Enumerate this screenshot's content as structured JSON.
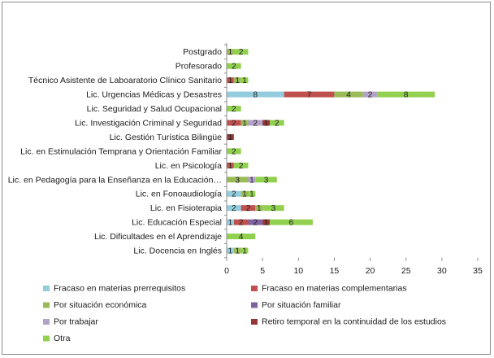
{
  "chart_data": {
    "type": "bar",
    "orientation": "horizontal",
    "stacked": true,
    "categories": [
      "Postgrado",
      "Profesorado",
      "Técnico Asistente de Laboaratorio Clínico Sanitario",
      "Lic. Urgencias Médicas y Desastres",
      "Lic. Seguridad y Salud Ocupacional",
      "Lic. Investigación Criminal y Seguridad",
      "Lic. Gestión Turística Bilingüe",
      "Lic. en Estimulación Temprana y Orientación Familiar",
      "Lic. en Psicología",
      "Lic.  en Pedagogía para la Enseñanza en la Educación…",
      "Lic. en Fonoaudiología",
      "Lic.  en Fisioterapia",
      "Lic. Educación Especial",
      "Lic.  Dificultades en el Aprendizaje",
      "Lic. Docencia en Inglés"
    ],
    "series": [
      {
        "name": "Fracaso en materias prerrequisitos",
        "color": "#93cddd",
        "values": [
          0,
          0,
          0,
          8,
          0,
          0,
          0,
          0,
          0,
          0,
          2,
          2,
          1,
          0,
          1
        ]
      },
      {
        "name": "Fracaso en materias complementarias",
        "color": "#c0504d",
        "values": [
          0,
          0,
          1,
          7,
          0,
          2,
          0,
          0,
          1,
          0,
          0,
          2,
          2,
          0,
          0
        ]
      },
      {
        "name": "Por situación económica",
        "color": "#9bbb59",
        "values": [
          1,
          0,
          1,
          4,
          0,
          1,
          0,
          0,
          0,
          3,
          1,
          1,
          0,
          0,
          1
        ]
      },
      {
        "name": "Por situación familiar",
        "color": "#8064a2",
        "values": [
          0,
          0,
          0,
          0,
          0,
          0,
          0,
          0,
          0,
          0,
          0,
          0,
          2,
          0,
          0
        ]
      },
      {
        "name": "Por trabajar",
        "color": "#b3a2c7",
        "values": [
          0,
          0,
          0,
          2,
          0,
          2,
          0,
          0,
          0,
          1,
          0,
          0,
          0,
          0,
          0
        ]
      },
      {
        "name": "Retiro temporal en la continuidad de los estudios",
        "color": "#953735",
        "values": [
          0,
          0,
          0,
          0,
          0,
          1,
          1,
          0,
          0,
          0,
          0,
          0,
          1,
          0,
          0
        ]
      },
      {
        "name": "Otra",
        "color": "#92d050",
        "values": [
          2,
          2,
          1,
          8,
          2,
          2,
          0,
          2,
          2,
          3,
          1,
          3,
          6,
          4,
          1
        ]
      }
    ],
    "xlim": [
      0,
      35
    ],
    "xticks": [
      0,
      5,
      10,
      15,
      20,
      25,
      30,
      35
    ],
    "title": "",
    "xlabel": "",
    "ylabel": "",
    "grid": false,
    "legend_position": "bottom"
  }
}
